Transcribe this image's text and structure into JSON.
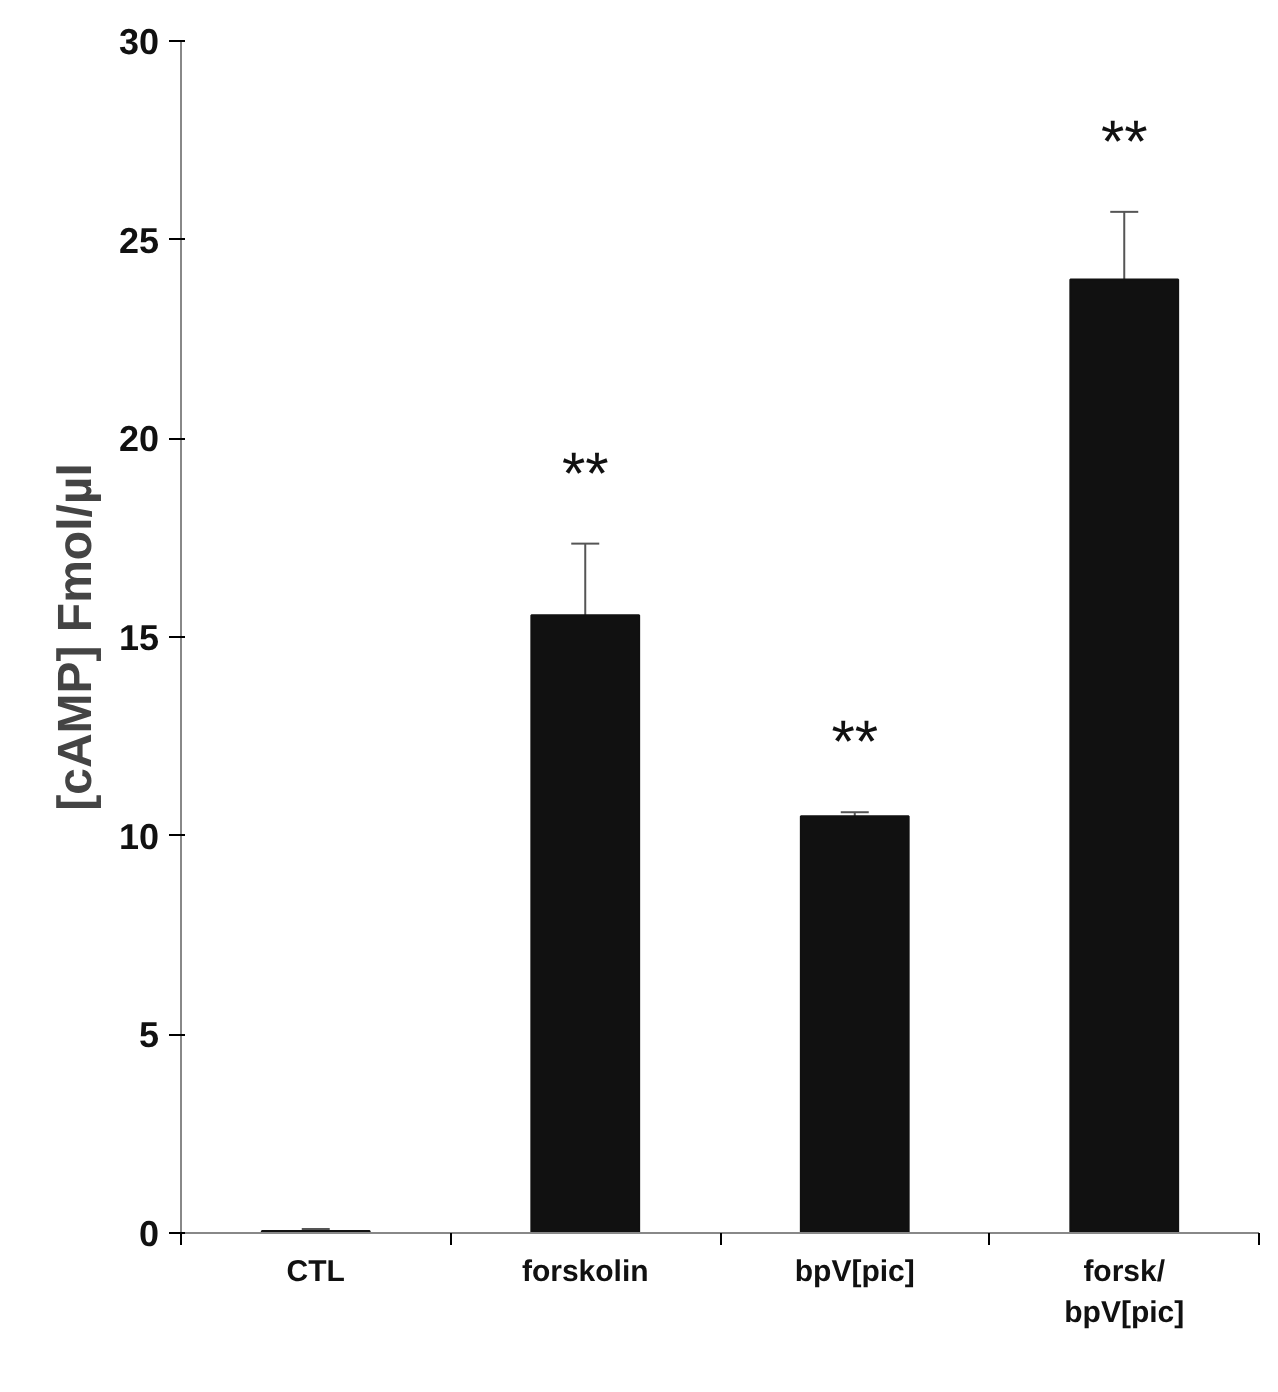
{
  "chart_data": {
    "type": "bar",
    "ylabel": "[cAMP] Fmol/µl",
    "categories": [
      "CTL",
      "forskolin",
      "bpV[pic]",
      "forsk/\nbpV[pic]"
    ],
    "values": [
      0.05,
      15.55,
      10.49,
      24.0
    ],
    "errors": [
      0.05,
      1.8,
      0.1,
      1.7
    ],
    "color": "#111111",
    "value_labels": [
      null,
      "**",
      "**",
      "**"
    ],
    "ylim": [
      0,
      30
    ],
    "yticks": [
      0,
      5,
      10,
      15,
      20,
      25,
      30
    ],
    "grid": false
  }
}
